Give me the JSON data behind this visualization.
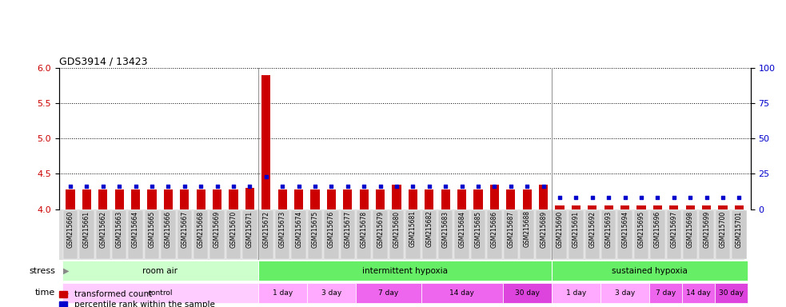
{
  "title": "GDS3914 / 13423",
  "samples": [
    "GSM215660",
    "GSM215661",
    "GSM215662",
    "GSM215663",
    "GSM215664",
    "GSM215665",
    "GSM215666",
    "GSM215667",
    "GSM215668",
    "GSM215669",
    "GSM215670",
    "GSM215671",
    "GSM215672",
    "GSM215673",
    "GSM215674",
    "GSM215675",
    "GSM215676",
    "GSM215677",
    "GSM215678",
    "GSM215679",
    "GSM215680",
    "GSM215681",
    "GSM215682",
    "GSM215683",
    "GSM215684",
    "GSM215685",
    "GSM215686",
    "GSM215687",
    "GSM215688",
    "GSM215689",
    "GSM215690",
    "GSM215691",
    "GSM215692",
    "GSM215693",
    "GSM215694",
    "GSM215695",
    "GSM215696",
    "GSM215697",
    "GSM215698",
    "GSM215699",
    "GSM215700",
    "GSM215701"
  ],
  "transformed_count": [
    4.28,
    4.28,
    4.28,
    4.28,
    4.28,
    4.28,
    4.28,
    4.28,
    4.28,
    4.28,
    4.28,
    4.3,
    5.9,
    4.28,
    4.28,
    4.28,
    4.28,
    4.28,
    4.28,
    4.28,
    4.35,
    4.28,
    4.28,
    4.28,
    4.28,
    4.28,
    4.35,
    4.28,
    4.28,
    4.35,
    4.05,
    4.05,
    4.05,
    4.05,
    4.05,
    4.05,
    4.05,
    4.05,
    4.05,
    4.05,
    4.05,
    4.05
  ],
  "percentile_rank": [
    16,
    16,
    16,
    16,
    16,
    16,
    16,
    16,
    16,
    16,
    16,
    16,
    23,
    16,
    16,
    16,
    16,
    16,
    16,
    16,
    16,
    16,
    16,
    16,
    16,
    16,
    16,
    16,
    16,
    16,
    8,
    8,
    8,
    8,
    8,
    8,
    8,
    8,
    8,
    8,
    8,
    8
  ],
  "ylim_left": [
    4.0,
    6.0
  ],
  "ylim_right": [
    0,
    100
  ],
  "yticks_left": [
    4.0,
    4.5,
    5.0,
    5.5,
    6.0
  ],
  "yticks_right": [
    0,
    25,
    50,
    75,
    100
  ],
  "bar_color": "#cc0000",
  "dot_color": "#0000cc",
  "stress_groups": [
    {
      "label": "room air",
      "start": 0,
      "end": 12,
      "color": "#ccffcc"
    },
    {
      "label": "intermittent hypoxia",
      "start": 12,
      "end": 30,
      "color": "#66ee66"
    },
    {
      "label": "sustained hypoxia",
      "start": 30,
      "end": 42,
      "color": "#66ee66"
    }
  ],
  "time_groups": [
    {
      "label": "control",
      "start": 0,
      "end": 12,
      "color": "#ffccff"
    },
    {
      "label": "1 day",
      "start": 12,
      "end": 15,
      "color": "#ffaaff"
    },
    {
      "label": "3 day",
      "start": 15,
      "end": 18,
      "color": "#ffaaff"
    },
    {
      "label": "7 day",
      "start": 18,
      "end": 22,
      "color": "#ee66ee"
    },
    {
      "label": "14 day",
      "start": 22,
      "end": 27,
      "color": "#ee66ee"
    },
    {
      "label": "30 day",
      "start": 27,
      "end": 30,
      "color": "#dd44dd"
    },
    {
      "label": "1 day",
      "start": 30,
      "end": 33,
      "color": "#ffaaff"
    },
    {
      "label": "3 day",
      "start": 33,
      "end": 36,
      "color": "#ffaaff"
    },
    {
      "label": "7 day",
      "start": 36,
      "end": 38,
      "color": "#ee66ee"
    },
    {
      "label": "14 day",
      "start": 38,
      "end": 40,
      "color": "#ee66ee"
    },
    {
      "label": "30 day",
      "start": 40,
      "end": 42,
      "color": "#dd44dd"
    }
  ],
  "legend_items": [
    {
      "label": "transformed count",
      "color": "#cc0000"
    },
    {
      "label": "percentile rank within the sample",
      "color": "#0000cc"
    }
  ]
}
